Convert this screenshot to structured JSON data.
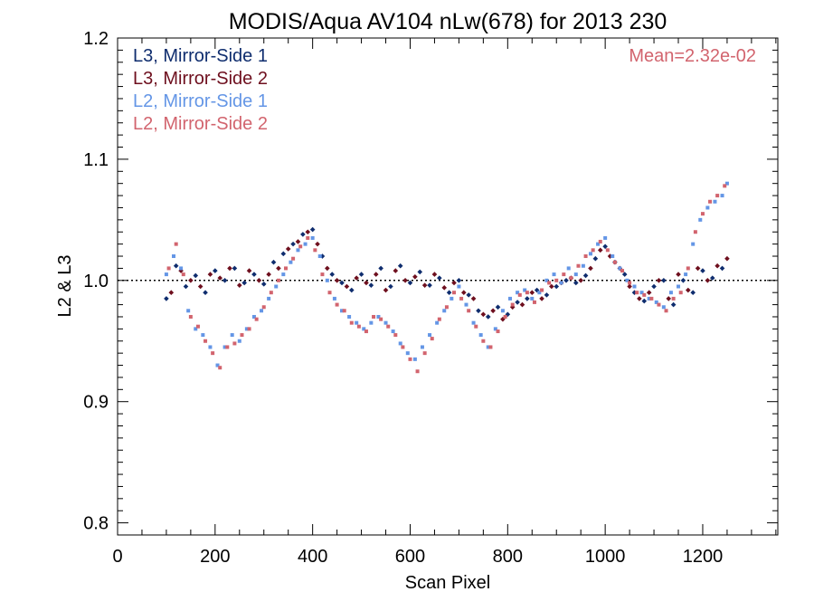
{
  "chart_data": {
    "type": "scatter",
    "title": "MODIS/Aqua AV104 nLw(678) for 2013 230",
    "xlabel": "Scan Pixel",
    "ylabel": "L2 & L3",
    "xlim": [
      0,
      1354
    ],
    "ylim": [
      0.79,
      1.2
    ],
    "x_ticks": [
      0,
      200,
      400,
      600,
      800,
      1000,
      1200
    ],
    "x_tick_labels": [
      "0",
      "200",
      "400",
      "600",
      "800",
      "1000",
      "1200"
    ],
    "y_ticks": [
      0.8,
      0.9,
      1.0,
      1.1,
      1.2
    ],
    "y_tick_labels": [
      "0.8",
      "0.9",
      "1.0",
      "1.1",
      "1.2"
    ],
    "reference_line": {
      "y": 1.0,
      "style": "dotted"
    },
    "annotation": {
      "text": "Mean=2.32e-02",
      "color": "#D2646E",
      "position": "top-right"
    },
    "legend": {
      "position": "top-left",
      "style": "colored-text"
    },
    "series": [
      {
        "name": "L3, Mirror-Side 1",
        "color": "#0F2D6E",
        "marker": "diamond",
        "x": [
          100,
          120,
          140,
          160,
          180,
          200,
          220,
          240,
          260,
          280,
          300,
          320,
          340,
          360,
          380,
          400,
          420,
          440,
          460,
          480,
          500,
          520,
          540,
          560,
          580,
          600,
          620,
          640,
          660,
          680,
          700,
          720,
          740,
          760,
          780,
          800,
          820,
          840,
          860,
          880,
          900,
          920,
          940,
          960,
          980,
          1000,
          1020,
          1040,
          1060,
          1080,
          1100,
          1120,
          1140,
          1160,
          1180,
          1200,
          1220,
          1240
        ],
        "y": [
          0.985,
          1.012,
          0.995,
          1.004,
          0.99,
          1.008,
          1.0,
          1.01,
          0.998,
          1.005,
          0.997,
          1.015,
          1.022,
          1.03,
          1.038,
          1.042,
          1.02,
          1.005,
          0.998,
          0.992,
          1.005,
          0.996,
          1.01,
          0.995,
          1.012,
          0.998,
          1.007,
          0.996,
          1.002,
          0.99,
          1.0,
          0.988,
          0.975,
          0.97,
          0.978,
          0.972,
          0.982,
          0.985,
          0.992,
          0.988,
          0.995,
          1.0,
          0.998,
          1.004,
          1.018,
          1.028,
          1.015,
          1.005,
          0.99,
          0.983,
          0.995,
          1.0,
          0.98,
          1.0,
          0.99,
          1.008,
          1.002,
          1.01
        ]
      },
      {
        "name": "L3, Mirror-Side 2",
        "color": "#6E0F1E",
        "marker": "diamond",
        "x": [
          110,
          130,
          150,
          170,
          190,
          210,
          230,
          250,
          270,
          290,
          310,
          330,
          350,
          370,
          390,
          410,
          430,
          450,
          470,
          490,
          510,
          530,
          550,
          570,
          590,
          610,
          630,
          650,
          670,
          690,
          710,
          730,
          750,
          770,
          790,
          810,
          830,
          850,
          870,
          890,
          910,
          930,
          950,
          970,
          990,
          1010,
          1030,
          1050,
          1070,
          1090,
          1110,
          1130,
          1150,
          1170,
          1190,
          1210,
          1230,
          1250
        ],
        "y": [
          0.99,
          1.008,
          1.0,
          0.995,
          1.005,
          1.002,
          1.01,
          0.996,
          1.008,
          1.0,
          1.005,
          1.01,
          1.026,
          1.032,
          1.04,
          1.03,
          1.01,
          1.0,
          0.995,
          1.002,
          0.998,
          1.005,
          0.992,
          1.008,
          1.0,
          1.003,
          0.996,
          1.005,
          0.994,
          0.998,
          0.99,
          0.985,
          0.972,
          0.975,
          0.968,
          0.978,
          0.98,
          0.99,
          0.985,
          0.995,
          0.998,
          1.002,
          1.0,
          1.01,
          1.025,
          1.02,
          1.01,
          0.995,
          0.985,
          0.99,
          1.0,
          0.985,
          1.005,
          0.992,
          1.01,
          1.0,
          1.012,
          1.018
        ]
      },
      {
        "name": "L2, Mirror-Side 1",
        "color": "#6496E6",
        "marker": "square",
        "x": [
          100,
          115,
          130,
          145,
          160,
          175,
          190,
          205,
          220,
          235,
          250,
          265,
          280,
          295,
          310,
          325,
          340,
          355,
          370,
          385,
          400,
          415,
          430,
          445,
          460,
          475,
          490,
          505,
          520,
          535,
          550,
          565,
          580,
          595,
          610,
          625,
          640,
          655,
          670,
          685,
          700,
          715,
          730,
          745,
          760,
          775,
          790,
          805,
          820,
          835,
          850,
          865,
          880,
          895,
          910,
          925,
          940,
          955,
          970,
          985,
          1000,
          1015,
          1030,
          1045,
          1060,
          1075,
          1090,
          1105,
          1120,
          1135,
          1150,
          1165,
          1180,
          1195,
          1210,
          1225,
          1240,
          1250
        ],
        "y": [
          1.005,
          1.02,
          1.01,
          0.975,
          0.96,
          0.955,
          0.945,
          0.93,
          0.945,
          0.955,
          0.95,
          0.96,
          0.97,
          0.975,
          0.985,
          0.995,
          1.005,
          1.015,
          1.025,
          1.03,
          1.035,
          1.02,
          1.0,
          0.985,
          0.975,
          0.97,
          0.965,
          0.96,
          0.965,
          0.97,
          0.965,
          0.958,
          0.948,
          0.94,
          0.935,
          0.945,
          0.955,
          0.965,
          0.975,
          0.985,
          0.995,
          0.98,
          0.965,
          0.955,
          0.945,
          0.96,
          0.975,
          0.985,
          0.99,
          0.992,
          0.985,
          0.99,
          1.0,
          1.005,
          0.998,
          1.01,
          1.005,
          1.012,
          1.022,
          1.03,
          1.035,
          1.02,
          1.01,
          1.0,
          0.995,
          0.99,
          0.985,
          0.982,
          0.978,
          0.99,
          0.995,
          1.005,
          1.03,
          1.05,
          1.06,
          1.065,
          1.07,
          1.08
        ]
      },
      {
        "name": "L2, Mirror-Side 2",
        "color": "#D2646E",
        "marker": "square",
        "x": [
          105,
          120,
          135,
          150,
          165,
          180,
          195,
          210,
          225,
          240,
          255,
          270,
          285,
          300,
          315,
          330,
          345,
          360,
          375,
          390,
          405,
          420,
          435,
          450,
          465,
          480,
          495,
          510,
          525,
          540,
          555,
          570,
          585,
          600,
          615,
          630,
          645,
          660,
          675,
          690,
          705,
          720,
          735,
          750,
          765,
          780,
          795,
          810,
          825,
          840,
          855,
          870,
          885,
          900,
          915,
          930,
          945,
          960,
          975,
          990,
          1005,
          1020,
          1035,
          1050,
          1065,
          1080,
          1095,
          1110,
          1125,
          1140,
          1155,
          1170,
          1185,
          1200,
          1215,
          1230,
          1245
        ],
        "y": [
          1.01,
          1.03,
          1.005,
          0.97,
          0.962,
          0.95,
          0.94,
          0.928,
          0.945,
          0.948,
          0.955,
          0.96,
          0.968,
          0.978,
          0.99,
          1.0,
          1.01,
          1.018,
          1.028,
          1.035,
          1.025,
          1.005,
          0.99,
          0.98,
          0.975,
          0.965,
          0.962,
          0.958,
          0.97,
          0.968,
          0.962,
          0.955,
          0.945,
          0.935,
          0.925,
          0.94,
          0.952,
          0.968,
          0.978,
          0.99,
          0.985,
          0.975,
          0.962,
          0.95,
          0.945,
          0.958,
          0.97,
          0.98,
          0.988,
          0.99,
          0.982,
          0.992,
          0.998,
          1.0,
          1.005,
          1.002,
          1.012,
          1.02,
          1.025,
          1.032,
          1.025,
          1.015,
          1.008,
          0.998,
          0.99,
          0.988,
          0.985,
          0.98,
          0.975,
          0.985,
          0.99,
          1.01,
          1.04,
          1.055,
          1.065,
          1.07,
          1.078
        ]
      }
    ]
  }
}
